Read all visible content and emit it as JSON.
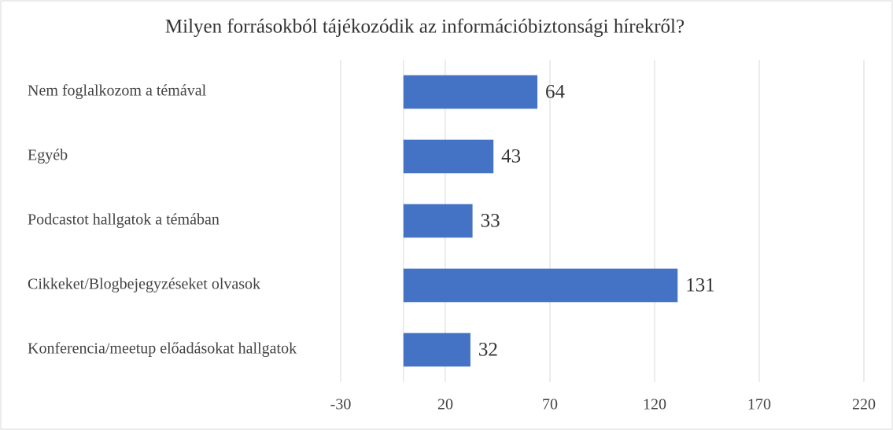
{
  "chart_data": {
    "type": "barh",
    "title": "Milyen forrásokból tájékozódik az információbiztonsági hírekről?",
    "categories": [
      "Nem foglalkozom a témával",
      "Egyéb",
      "Podcastot hallgatok a témában",
      "Cikkeket/Blogbejegyzéseket olvasok",
      "Konferencia/meetup előadásokat hallgatok"
    ],
    "values": [
      64,
      43,
      33,
      131,
      32
    ],
    "color": "#4472c4",
    "xlim": [
      -30,
      220
    ],
    "xticks": [
      -30,
      20,
      70,
      120,
      170,
      220
    ],
    "grid": true
  }
}
